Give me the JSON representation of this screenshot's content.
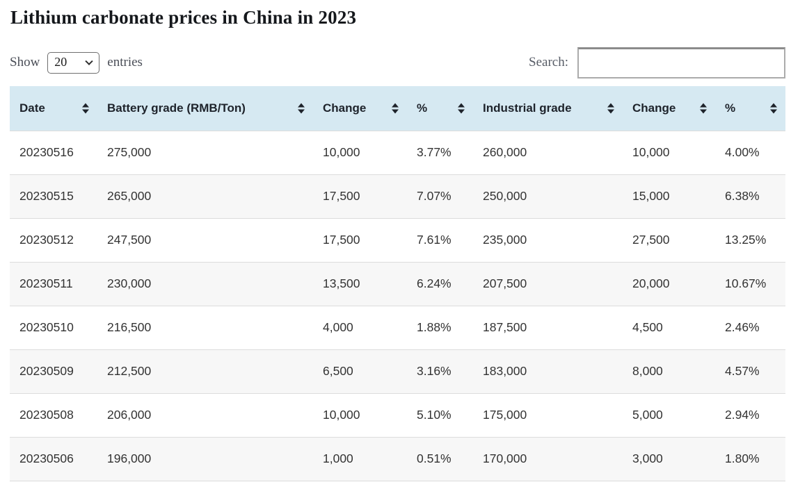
{
  "title": "Lithium carbonate prices in China in 2023",
  "controls": {
    "show_label": "Show",
    "entries_label": "entries",
    "page_length_value": "20",
    "search_label": "Search:",
    "search_value": ""
  },
  "colors": {
    "header_bg": "#d6e9f2",
    "stripe_bg": "#f7f7f7",
    "row_border": "#dcdcdc"
  },
  "table": {
    "columns": [
      {
        "label": "Date"
      },
      {
        "label": "Battery grade (RMB/Ton)"
      },
      {
        "label": "Change"
      },
      {
        "label": "%"
      },
      {
        "label": "Industrial grade"
      },
      {
        "label": "Change"
      },
      {
        "label": "%"
      }
    ],
    "rows": [
      [
        "20230516",
        "275,000",
        "10,000",
        "3.77%",
        "260,000",
        "10,000",
        "4.00%"
      ],
      [
        "20230515",
        "265,000",
        "17,500",
        "7.07%",
        "250,000",
        "15,000",
        "6.38%"
      ],
      [
        "20230512",
        "247,500",
        "17,500",
        "7.61%",
        "235,000",
        "27,500",
        "13.25%"
      ],
      [
        "20230511",
        "230,000",
        "13,500",
        "6.24%",
        "207,500",
        "20,000",
        "10.67%"
      ],
      [
        "20230510",
        "216,500",
        "4,000",
        "1.88%",
        "187,500",
        "4,500",
        "2.46%"
      ],
      [
        "20230509",
        "212,500",
        "6,500",
        "3.16%",
        "183,000",
        "8,000",
        "4.57%"
      ],
      [
        "20230508",
        "206,000",
        "10,000",
        "5.10%",
        "175,000",
        "5,000",
        "2.94%"
      ],
      [
        "20230506",
        "196,000",
        "1,000",
        "0.51%",
        "170,000",
        "3,000",
        "1.80%"
      ]
    ]
  }
}
